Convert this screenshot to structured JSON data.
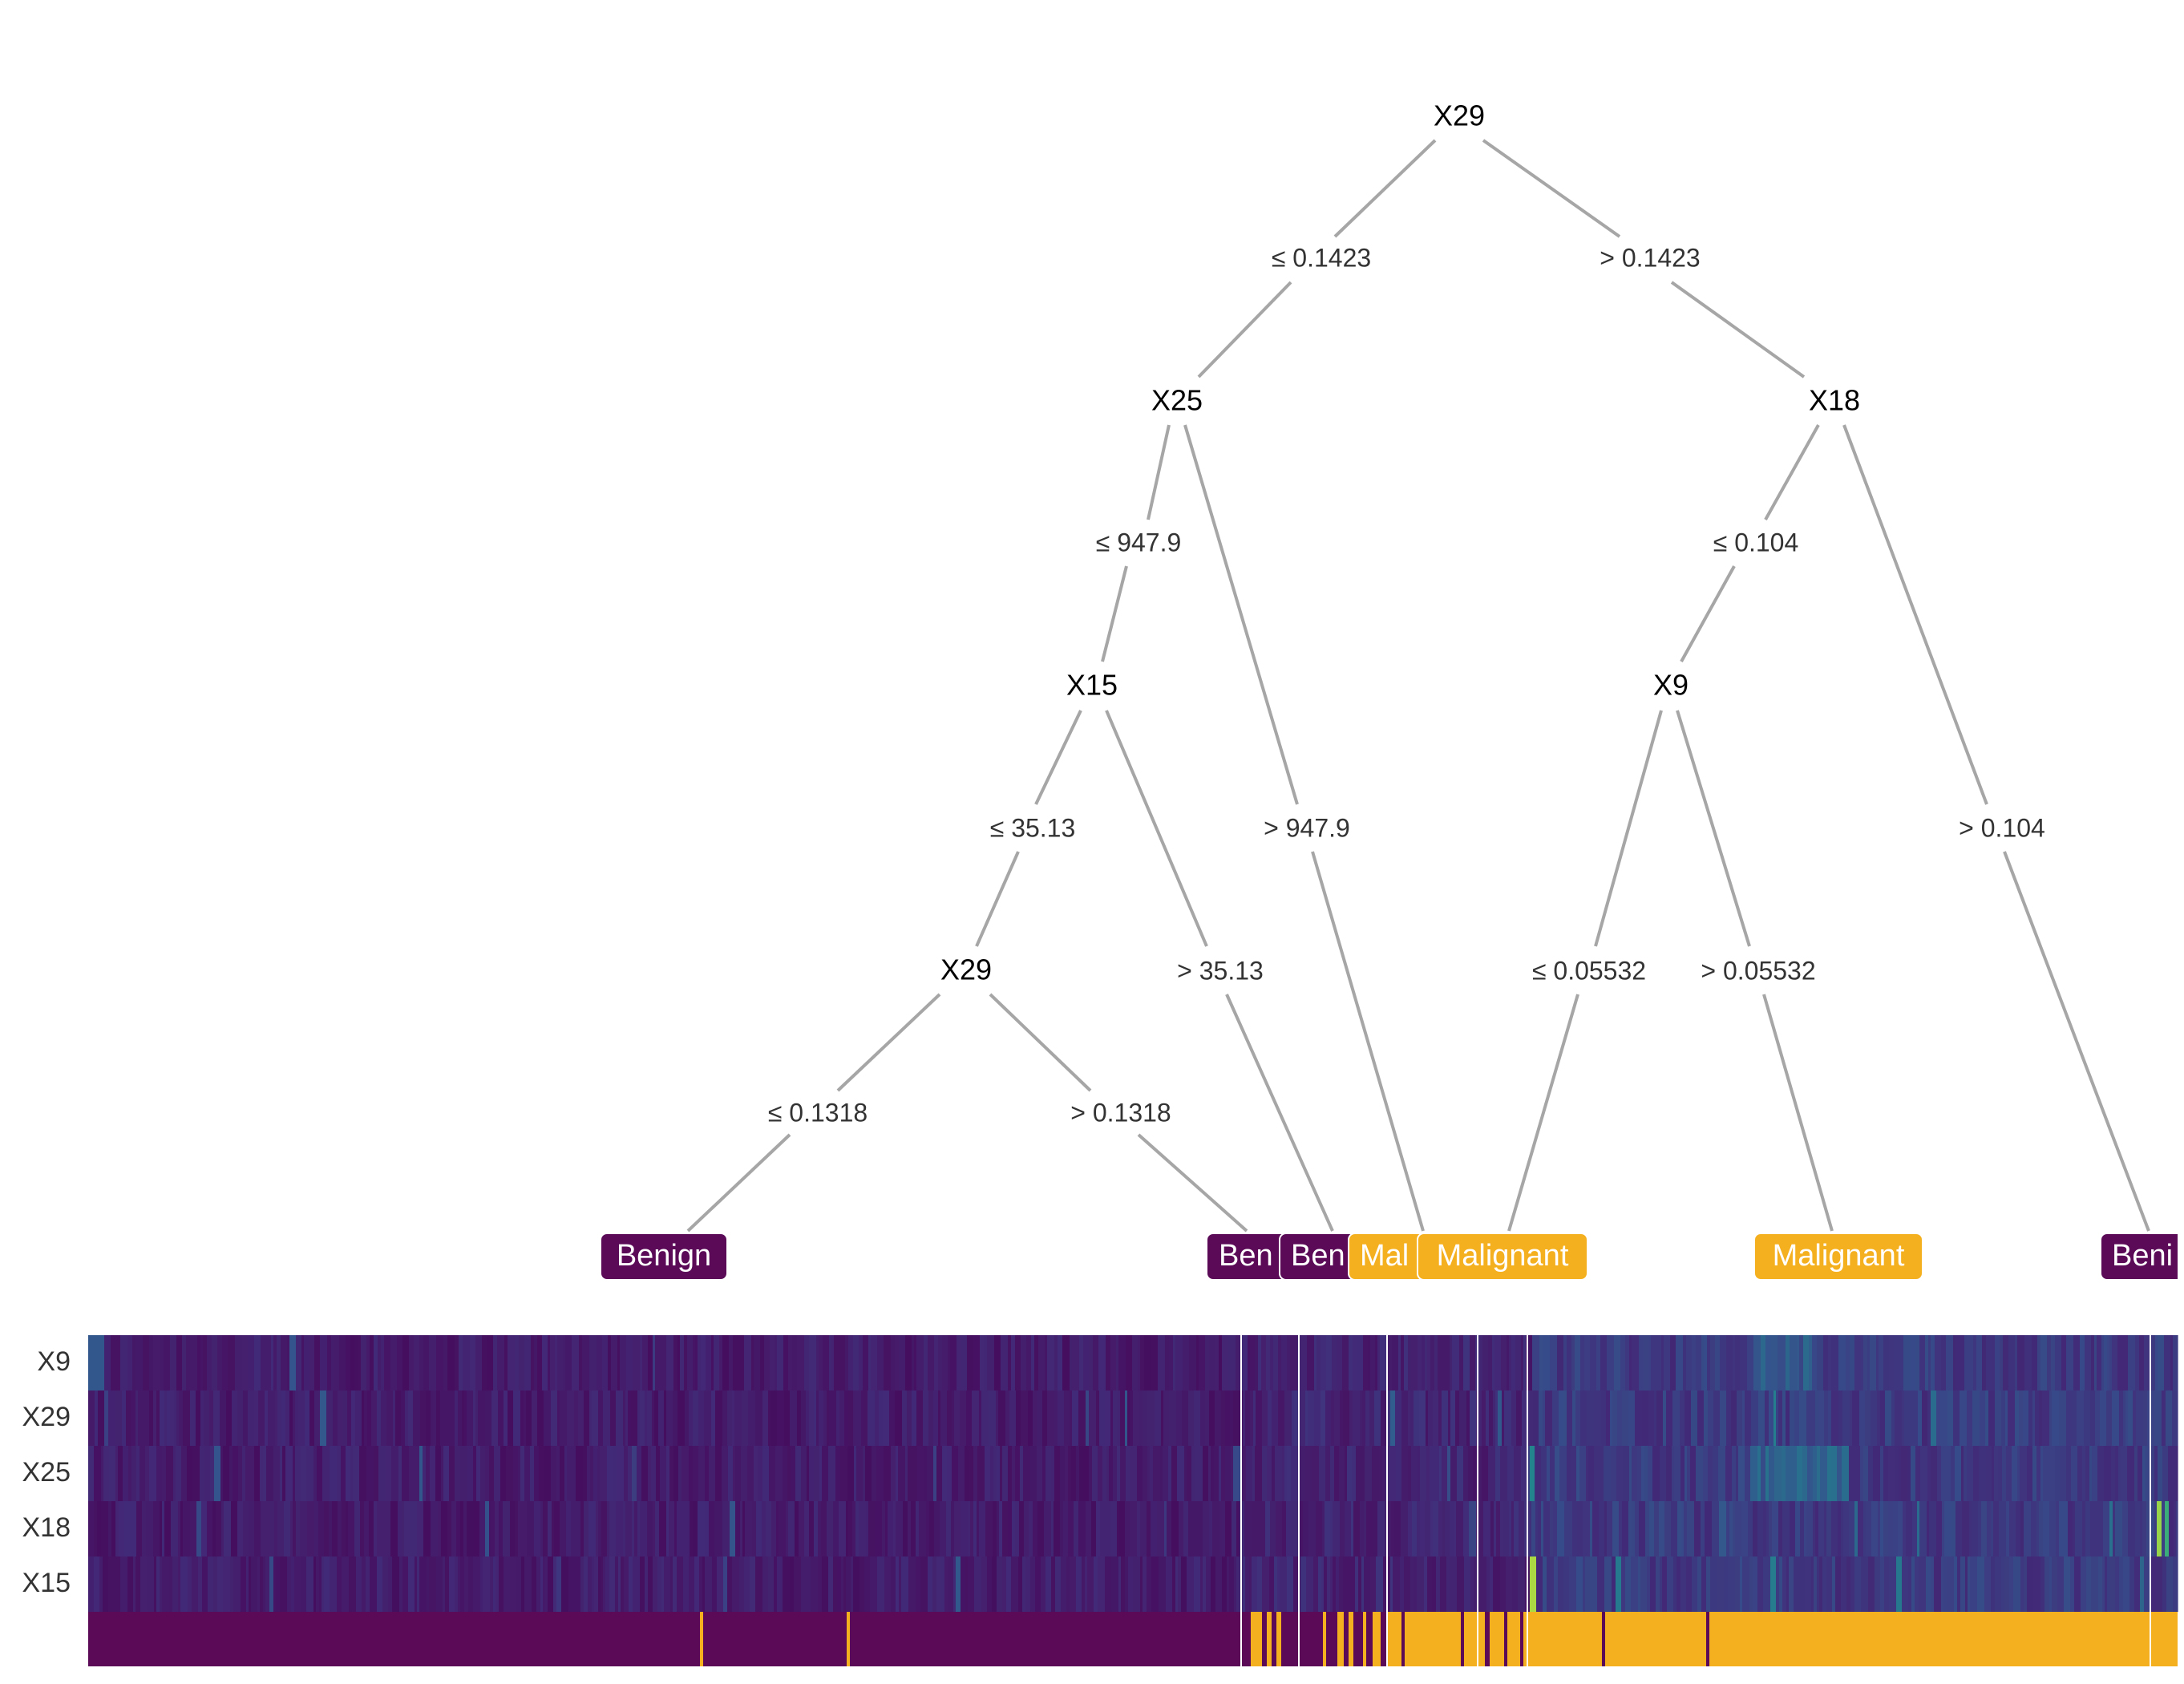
{
  "colors": {
    "benign": "#5a0a57",
    "malignant": "#f5b01f",
    "edge": "#a6a6a6",
    "separator": "#ffffff"
  },
  "tree": {
    "nodes": [
      {
        "id": "n1",
        "label": "X29"
      },
      {
        "id": "n2",
        "label": "X25"
      },
      {
        "id": "n3",
        "label": "X18"
      },
      {
        "id": "n4",
        "label": "X15"
      },
      {
        "id": "n5",
        "label": "X9"
      },
      {
        "id": "n6",
        "label": "X29"
      }
    ],
    "edges": [
      {
        "id": "e1",
        "from": "n1",
        "to": "n2",
        "label": "≤  0.1423"
      },
      {
        "id": "e2",
        "from": "n1",
        "to": "n3",
        "label": ">  0.1423"
      },
      {
        "id": "e3",
        "from": "n2",
        "to": "n4",
        "label": "≤  947.9"
      },
      {
        "id": "e4",
        "from": "n2",
        "to": "l4",
        "label": ">  947.9"
      },
      {
        "id": "e5",
        "from": "n3",
        "to": "n5",
        "label": "≤  0.104"
      },
      {
        "id": "e6",
        "from": "n3",
        "to": "l7",
        "label": ">  0.104"
      },
      {
        "id": "e7",
        "from": "n4",
        "to": "n6",
        "label": "≤  35.13"
      },
      {
        "id": "e8",
        "from": "n4",
        "to": "l3",
        "label": ">  35.13"
      },
      {
        "id": "e9",
        "from": "n5",
        "to": "l5",
        "label": "≤  0.05532"
      },
      {
        "id": "e10",
        "from": "n5",
        "to": "l6",
        "label": ">  0.05532"
      },
      {
        "id": "e11",
        "from": "n6",
        "to": "l1",
        "label": "≤  0.1318"
      },
      {
        "id": "e12",
        "from": "n6",
        "to": "l2",
        "label": ">  0.1318"
      }
    ],
    "leaves": [
      {
        "id": "l1",
        "label": "Benign",
        "class": "benign"
      },
      {
        "id": "l2",
        "label": "Ben",
        "class": "benign"
      },
      {
        "id": "l3",
        "label": "Ben",
        "class": "benign"
      },
      {
        "id": "l4",
        "label": "Mal",
        "class": "malignant"
      },
      {
        "id": "l5",
        "label": "Malignant",
        "class": "malignant"
      },
      {
        "id": "l6",
        "label": "Malignant",
        "class": "malignant"
      },
      {
        "id": "l7",
        "label": "Beni",
        "class": "benign"
      }
    ]
  },
  "heatmap": {
    "rows": [
      "X9",
      "X29",
      "X25",
      "X18",
      "X15"
    ],
    "label_row_colors": [
      "benign",
      "malignant"
    ]
  }
}
